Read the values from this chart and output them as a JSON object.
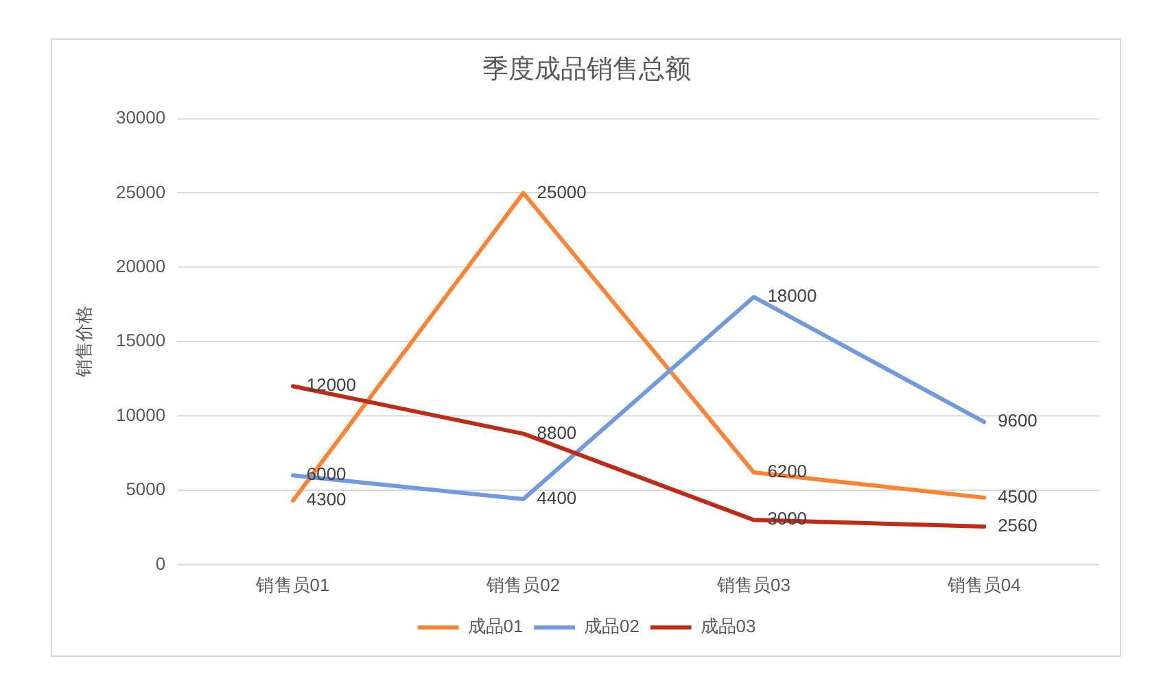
{
  "chart_data": {
    "type": "line",
    "title": "季度成品销售总额",
    "ylabel": "销售价格",
    "categories": [
      "销售员01",
      "销售员02",
      "销售员03",
      "销售员04"
    ],
    "series": [
      {
        "name": "成品01",
        "color": "#fe8433",
        "values": [
          4300,
          25000,
          6200,
          4500
        ]
      },
      {
        "name": "成品02",
        "color": "#7099e0",
        "values": [
          6000,
          4400,
          18000,
          9600
        ]
      },
      {
        "name": "成品03",
        "color": "#be2b17",
        "values": [
          12000,
          8800,
          3000,
          2560
        ]
      }
    ],
    "ylim": [
      0,
      30000
    ],
    "yticks": [
      0,
      5000,
      10000,
      15000,
      20000,
      25000,
      30000
    ],
    "grid": "y",
    "legend": "bottom",
    "marker": "none",
    "data_labels": true
  }
}
